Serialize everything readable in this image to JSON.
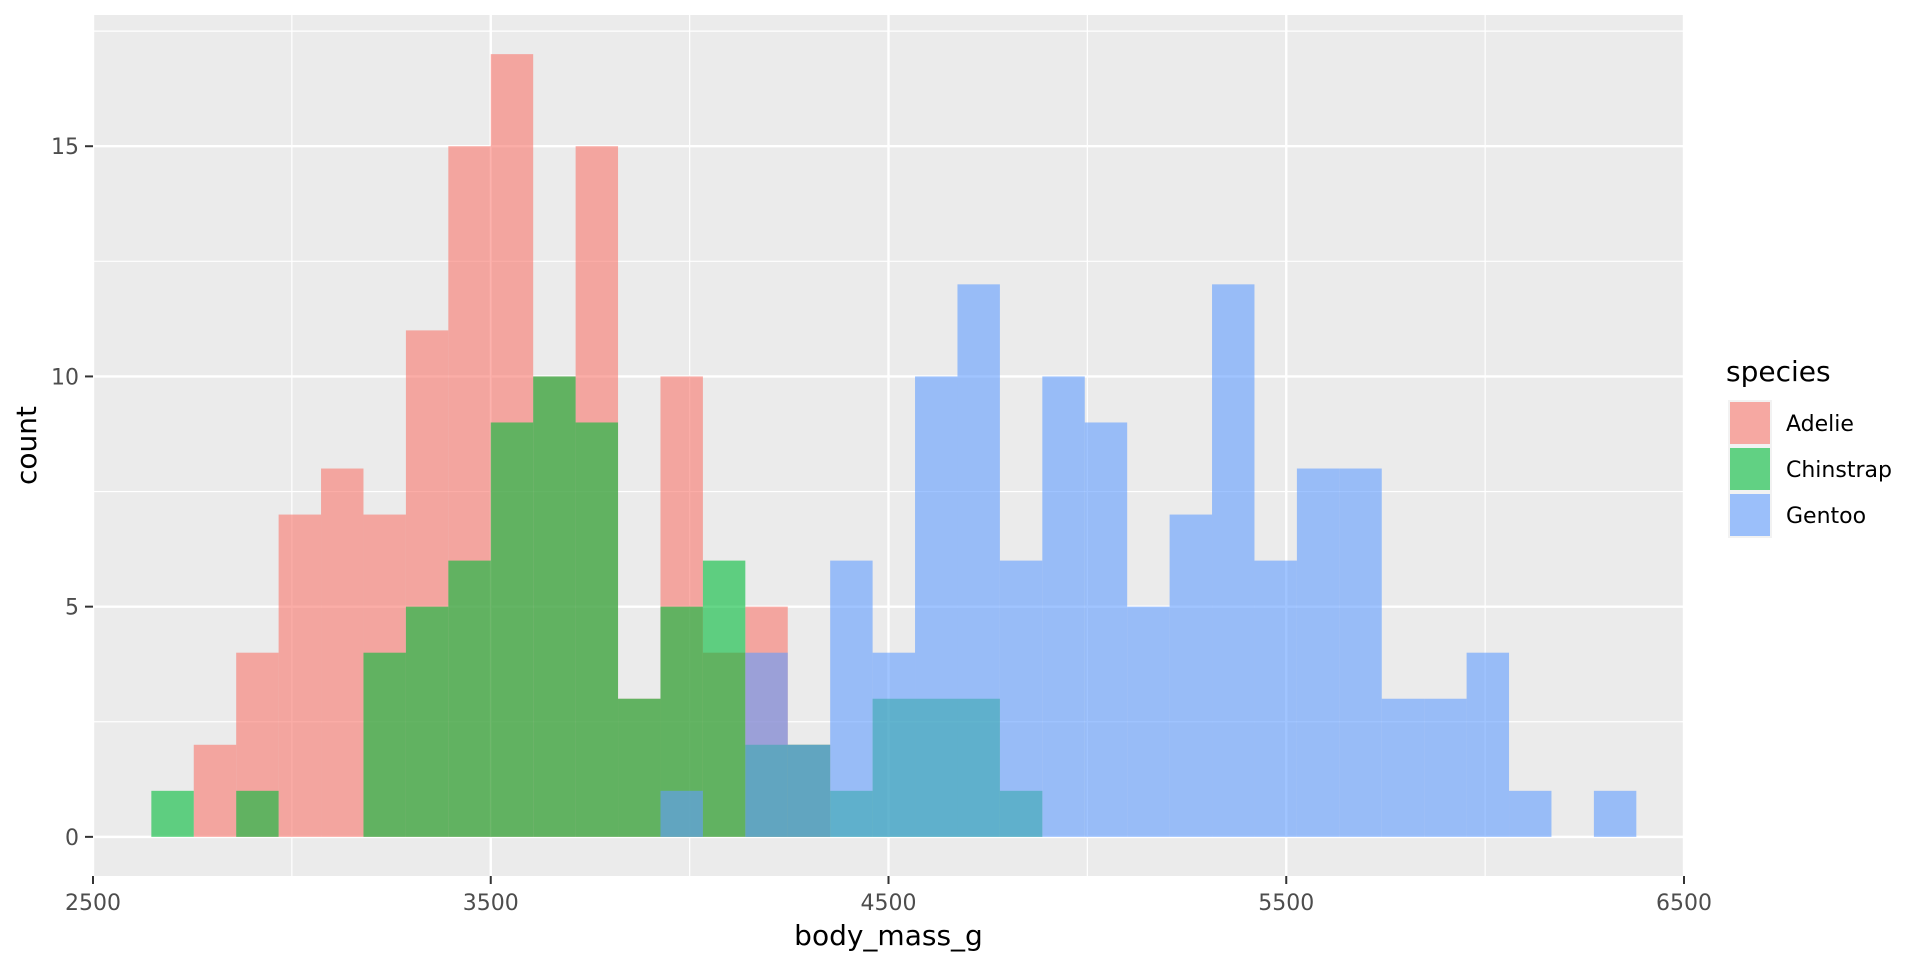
{
  "chart_data": {
    "type": "histogram",
    "title": "",
    "xlabel": "body_mass_g",
    "ylabel": "count",
    "xlim": [
      2500,
      6500
    ],
    "ylim": [
      -0.85,
      17.85
    ],
    "x_ticks": [
      2500,
      3500,
      4500,
      5500,
      6500
    ],
    "y_ticks": [
      0,
      5,
      10,
      15
    ],
    "grid": true,
    "bin_width": 106.67,
    "bin_start": 2646.67,
    "legend": {
      "title": "species",
      "position": "right"
    },
    "series": [
      {
        "name": "Adelie",
        "color": "#F8766D",
        "counts": [
          0,
          2,
          4,
          7,
          8,
          7,
          11,
          15,
          17,
          10,
          15,
          3,
          10,
          4,
          5,
          2,
          0,
          0,
          0,
          0,
          0,
          0,
          0,
          0,
          0,
          0,
          0,
          0,
          0,
          0,
          0,
          0,
          0,
          0,
          0,
          0
        ]
      },
      {
        "name": "Chinstrap",
        "color": "#00BA38",
        "counts": [
          1,
          0,
          1,
          0,
          0,
          4,
          5,
          6,
          9,
          10,
          9,
          3,
          5,
          6,
          2,
          2,
          1,
          3,
          3,
          3,
          1,
          0,
          0,
          0,
          0,
          0,
          0,
          0,
          0,
          0,
          0,
          0,
          0,
          0,
          0,
          0
        ]
      },
      {
        "name": "Gentoo",
        "color": "#619CFF",
        "counts": [
          0,
          0,
          0,
          0,
          0,
          0,
          0,
          0,
          0,
          0,
          0,
          0,
          1,
          0,
          4,
          2,
          6,
          4,
          10,
          12,
          6,
          10,
          9,
          5,
          7,
          12,
          6,
          8,
          8,
          3,
          3,
          4,
          1,
          0,
          1,
          0
        ]
      }
    ]
  }
}
